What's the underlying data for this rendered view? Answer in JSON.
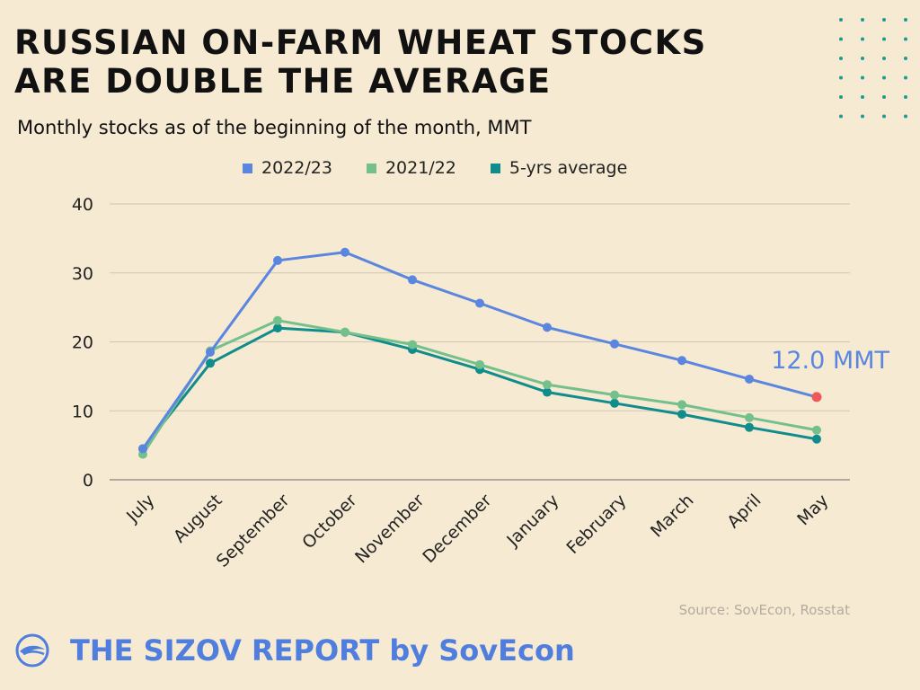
{
  "header": {
    "title_line1": "RUSSIAN ON-FARM WHEAT STOCKS",
    "title_line2": "ARE DOUBLE THE AVERAGE",
    "subtitle": "Monthly stocks as of the beginning of the month, MMT"
  },
  "legend": [
    {
      "label": "2022/23",
      "color": "#5b86e0"
    },
    {
      "label": "2021/22",
      "color": "#74c08d"
    },
    {
      "label": "5-yrs average",
      "color": "#0f8c8c"
    }
  ],
  "chart_data": {
    "type": "line",
    "categories": [
      "July",
      "August",
      "September",
      "October",
      "November",
      "December",
      "January",
      "February",
      "March",
      "April",
      "May"
    ],
    "series": [
      {
        "name": "2022/23",
        "color": "#5b86e0",
        "values": [
          4.5,
          18.5,
          31.8,
          33.0,
          29.0,
          25.6,
          22.1,
          19.7,
          17.3,
          14.6,
          12.0
        ]
      },
      {
        "name": "2021/22",
        "color": "#74c08d",
        "values": [
          3.7,
          18.7,
          23.1,
          21.4,
          19.6,
          16.7,
          13.8,
          12.3,
          10.9,
          9.0,
          7.2
        ]
      },
      {
        "name": "5-yrs average",
        "color": "#0f8c8c",
        "values": [
          4.5,
          16.9,
          22.0,
          21.4,
          18.9,
          16.0,
          12.7,
          11.1,
          9.5,
          7.6,
          5.9
        ]
      }
    ],
    "yticks": [
      0,
      10,
      20,
      30,
      40
    ],
    "ylim": [
      0,
      40
    ],
    "grid": true,
    "legend_position": "top-center",
    "annotation": {
      "text": "12.0 MMT",
      "series": "2022/23",
      "category": "May",
      "color": "#5b86e0",
      "marker_color": "#f0575a"
    }
  },
  "footer": {
    "source": "Source: SovEcon, Rosstat",
    "brand": "THE SIZOV REPORT by SovEcon",
    "logo_icon": "sovecon-logo-icon",
    "dots_icon": "dot-grid-decoration"
  }
}
